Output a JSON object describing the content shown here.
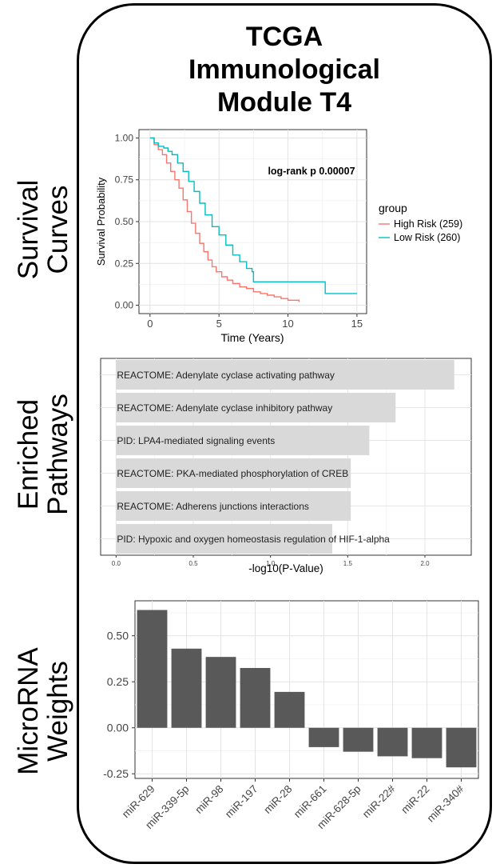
{
  "title": {
    "line1": "TCGA",
    "line2": "Immunological",
    "line3": "Module T4"
  },
  "sections": [
    {
      "line1": "Survival",
      "line2": "Curves"
    },
    {
      "line1": "Enriched",
      "line2": "Pathways"
    },
    {
      "line1": "MicroRNA",
      "line2": "Weights"
    }
  ],
  "chart_data": [
    {
      "type": "line",
      "xlabel": "Time (Years)",
      "ylabel": "Survival Probability",
      "xlim": [
        0,
        15
      ],
      "ylim": [
        0,
        1
      ],
      "xticks": [
        "0",
        "5",
        "10",
        "15"
      ],
      "yticks": [
        "0.00",
        "0.25",
        "0.50",
        "0.75",
        "1.00"
      ],
      "grid": true,
      "annotation": "log-rank p 0.00007",
      "legend_title": "group",
      "legend_position": "right",
      "series": [
        {
          "name": "High Risk (259)",
          "color": "#F8766D",
          "x": [
            0,
            0.3,
            0.6,
            0.9,
            1.2,
            1.5,
            1.8,
            2.1,
            2.4,
            2.7,
            3.0,
            3.3,
            3.6,
            3.9,
            4.2,
            4.5,
            4.8,
            5.2,
            5.6,
            6.0,
            6.5,
            7.0,
            7.5,
            8.0,
            8.5,
            9.0,
            9.5,
            10.0,
            10.8
          ],
          "y": [
            1.0,
            0.96,
            0.93,
            0.9,
            0.85,
            0.8,
            0.75,
            0.7,
            0.63,
            0.56,
            0.49,
            0.43,
            0.37,
            0.32,
            0.27,
            0.23,
            0.2,
            0.17,
            0.15,
            0.13,
            0.11,
            0.1,
            0.08,
            0.07,
            0.06,
            0.05,
            0.04,
            0.03,
            0.02
          ]
        },
        {
          "name": "Low Risk (260)",
          "color": "#00BFC4",
          "x": [
            0,
            0.3,
            0.6,
            1.0,
            1.3,
            1.6,
            2.0,
            2.4,
            2.8,
            3.2,
            3.6,
            4.0,
            4.5,
            5.0,
            5.5,
            6.0,
            6.5,
            7.0,
            7.4,
            7.5,
            9.5,
            12.6,
            12.7,
            15.0
          ],
          "y": [
            1.0,
            0.97,
            0.95,
            0.94,
            0.92,
            0.9,
            0.85,
            0.8,
            0.74,
            0.68,
            0.61,
            0.54,
            0.47,
            0.42,
            0.36,
            0.3,
            0.26,
            0.22,
            0.2,
            0.14,
            0.14,
            0.14,
            0.07,
            0.07
          ]
        }
      ]
    },
    {
      "type": "bar",
      "orientation": "horizontal",
      "xlabel": "-log10(P-Value)",
      "xlim": [
        0,
        2.25
      ],
      "xticks": [
        "0.0",
        "0.5",
        "1.0",
        "1.5",
        "2.0"
      ],
      "categories": [
        "REACTOME: Adenylate cyclase activating pathway",
        "REACTOME: Adenylate cyclase inhibitory pathway",
        "PID: LPA4-mediated signaling events",
        "REACTOME: PKA-mediated phosphorylation of CREB",
        "REACTOME: Adherens junctions interactions",
        "PID: Hypoxic and oxygen homeostasis regulation of HIF-1-alpha"
      ],
      "values": [
        2.19,
        1.81,
        1.64,
        1.52,
        1.52,
        1.4
      ],
      "bar_color": "#d9d9d9",
      "grid": true
    },
    {
      "type": "bar",
      "categories": [
        "miR-629",
        "miR-339-5p",
        "miR-98",
        "miR-197",
        "miR-28",
        "miR-661",
        "miR-628-5p",
        "miR-22#",
        "miR-22",
        "miR-340#"
      ],
      "values": [
        0.64,
        0.43,
        0.385,
        0.325,
        0.195,
        -0.105,
        -0.13,
        -0.155,
        -0.165,
        -0.215
      ],
      "ylim": [
        -0.25,
        0.7
      ],
      "yticks": [
        "-0.25",
        "0.00",
        "0.25",
        "0.50"
      ],
      "bar_color": "#595959",
      "grid": true
    }
  ]
}
